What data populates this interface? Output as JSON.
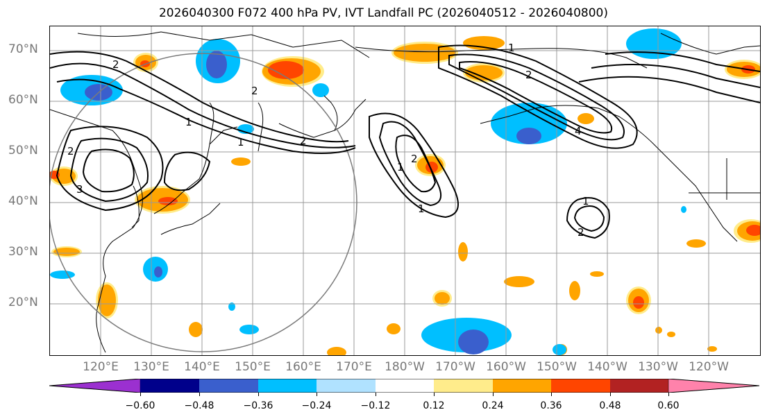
{
  "title": "2026040300 F072 400 hPa PV, IVT Landfall PC (2026040512 - 2026040800)",
  "lat_labels": [
    "70°N",
    "60°N",
    "50°N",
    "40°N",
    "30°N",
    "20°N"
  ],
  "lon_labels": [
    "120°E",
    "130°E",
    "140°E",
    "150°E",
    "160°E",
    "170°E",
    "180°W",
    "170°W",
    "160°W",
    "150°W",
    "140°W",
    "130°W",
    "120°W"
  ],
  "contour_labels": [
    "2",
    "1",
    "2",
    "2",
    "1",
    "3",
    "2",
    "2",
    "1",
    "2",
    "4",
    "1",
    "2",
    "1",
    "1"
  ],
  "colorbar": {
    "ticks": [
      "−0.60",
      "−0.48",
      "−0.36",
      "−0.24",
      "−0.12",
      "0.12",
      "0.24",
      "0.36",
      "0.48",
      "0.60"
    ],
    "colors": [
      "#9b30d0",
      "#00008b",
      "#3a5fcd",
      "#00bfff",
      "#b0e2ff",
      "#ffffff",
      "#ffec8b",
      "#ffa500",
      "#ff4500",
      "#b22222",
      "#ff82ab"
    ]
  },
  "colors": {
    "pos_fill": "#ffa500",
    "pos_strong": "#ff4500",
    "neg_fill": "#00bfff",
    "neg_strong": "#3a5fcd",
    "contour": "#000000",
    "grid": "#999999"
  }
}
